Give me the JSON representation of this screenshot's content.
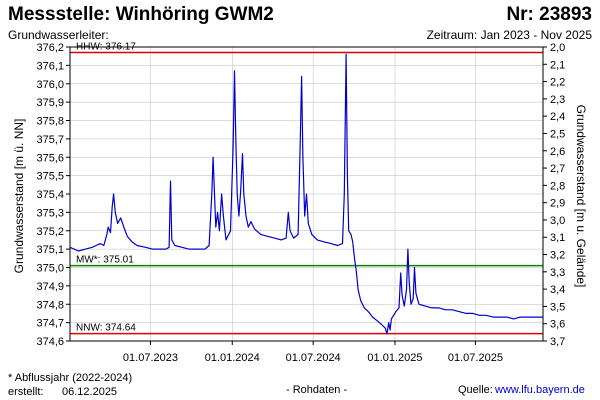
{
  "header": {
    "title_left": "Messstelle: Winhöring GWM2",
    "title_right": "Nr: 23893",
    "sub_left": "Grundwasserleiter:",
    "sub_right": "Zeitraum: Jan 2023 - Nov 2025"
  },
  "footer": {
    "note": "* Abflussjahr (2022-2024)",
    "created_label": "erstellt:",
    "created_date": "06.12.2025",
    "mid": "- Rohdaten -",
    "source_label": "Quelle:",
    "source_link": "www.lfu.bayern.de"
  },
  "colors": {
    "series": "#0000cc",
    "hhw": "#dd0000",
    "nnw": "#dd0000",
    "mw": "#008800",
    "grid": "#bbbbbb"
  },
  "chart_data": {
    "type": "line",
    "ylabel": "Grundwasserstand [m ü. NN]",
    "y2label": "Grundwasserstand [m u. Gelände]",
    "ylim": [
      374.6,
      376.2
    ],
    "y2lim": [
      2.0,
      3.7
    ],
    "yticks": [
      "376,2",
      "376,1",
      "376,0",
      "375,9",
      "375,8",
      "375,7",
      "375,6",
      "375,5",
      "375,4",
      "375,3",
      "375,2",
      "375,1",
      "375,0",
      "374,9",
      "374,8",
      "374,7",
      "374,6"
    ],
    "y2ticks": [
      "2,0",
      "2,1",
      "2,2",
      "2,3",
      "2,4",
      "2,5",
      "2,6",
      "2,7",
      "2,8",
      "2,9",
      "3,0",
      "3,1",
      "3,2",
      "3,3",
      "3,4",
      "3,5",
      "3,6",
      "3,7"
    ],
    "xlim": [
      "2023-01-01",
      "2025-11-30"
    ],
    "xticks": [
      {
        "date": "2023-07-01",
        "label": "01.07.2023"
      },
      {
        "date": "2024-01-01",
        "label": "01.01.2024"
      },
      {
        "date": "2024-07-01",
        "label": "01.07.2024"
      },
      {
        "date": "2025-01-01",
        "label": "01.01.2025"
      },
      {
        "date": "2025-07-01",
        "label": "01.07.2025"
      }
    ],
    "grid": true,
    "reference_lines": [
      {
        "label": "HHW: 376.17",
        "value": 376.17,
        "color": "#dd0000"
      },
      {
        "label": "MW*: 375.01",
        "value": 375.01,
        "color": "#008800"
      },
      {
        "label": "NNW: 374.64",
        "value": 374.64,
        "color": "#dd0000"
      }
    ],
    "series": [
      {
        "color": "#0000cc",
        "points": [
          [
            "2023-01-01",
            375.11
          ],
          [
            "2023-01-20",
            375.09
          ],
          [
            "2023-02-05",
            375.1
          ],
          [
            "2023-02-20",
            375.11
          ],
          [
            "2023-03-01",
            375.12
          ],
          [
            "2023-03-10",
            375.13
          ],
          [
            "2023-03-18",
            375.12
          ],
          [
            "2023-03-25",
            375.18
          ],
          [
            "2023-03-28",
            375.22
          ],
          [
            "2023-04-02",
            375.19
          ],
          [
            "2023-04-06",
            375.33
          ],
          [
            "2023-04-09",
            375.4
          ],
          [
            "2023-04-13",
            375.3
          ],
          [
            "2023-04-18",
            375.24
          ],
          [
            "2023-04-25",
            375.27
          ],
          [
            "2023-05-02",
            375.22
          ],
          [
            "2023-05-10",
            375.17
          ],
          [
            "2023-05-20",
            375.14
          ],
          [
            "2023-06-01",
            375.12
          ],
          [
            "2023-06-20",
            375.11
          ],
          [
            "2023-07-05",
            375.1
          ],
          [
            "2023-07-20",
            375.1
          ],
          [
            "2023-08-05",
            375.1
          ],
          [
            "2023-08-12",
            375.11
          ],
          [
            "2023-08-15",
            375.47
          ],
          [
            "2023-08-18",
            375.15
          ],
          [
            "2023-08-25",
            375.12
          ],
          [
            "2023-09-10",
            375.11
          ],
          [
            "2023-09-25",
            375.1
          ],
          [
            "2023-10-15",
            375.1
          ],
          [
            "2023-11-01",
            375.1
          ],
          [
            "2023-11-10",
            375.12
          ],
          [
            "2023-11-16",
            375.4
          ],
          [
            "2023-11-19",
            375.6
          ],
          [
            "2023-11-22",
            375.4
          ],
          [
            "2023-11-25",
            375.22
          ],
          [
            "2023-11-29",
            375.3
          ],
          [
            "2023-12-03",
            375.2
          ],
          [
            "2023-12-08",
            375.4
          ],
          [
            "2023-12-12",
            375.28
          ],
          [
            "2023-12-18",
            375.15
          ],
          [
            "2023-12-28",
            375.2
          ],
          [
            "2024-01-03",
            375.65
          ],
          [
            "2024-01-06",
            376.07
          ],
          [
            "2024-01-09",
            375.7
          ],
          [
            "2024-01-12",
            375.4
          ],
          [
            "2024-01-16",
            375.28
          ],
          [
            "2024-01-20",
            375.42
          ],
          [
            "2024-01-24",
            375.62
          ],
          [
            "2024-01-27",
            375.4
          ],
          [
            "2024-02-01",
            375.28
          ],
          [
            "2024-02-06",
            375.22
          ],
          [
            "2024-02-12",
            375.25
          ],
          [
            "2024-02-20",
            375.21
          ],
          [
            "2024-03-05",
            375.18
          ],
          [
            "2024-03-20",
            375.17
          ],
          [
            "2024-04-05",
            375.16
          ],
          [
            "2024-04-20",
            375.15
          ],
          [
            "2024-05-01",
            375.16
          ],
          [
            "2024-05-06",
            375.3
          ],
          [
            "2024-05-10",
            375.2
          ],
          [
            "2024-05-18",
            375.16
          ],
          [
            "2024-05-28",
            375.18
          ],
          [
            "2024-06-02",
            375.7
          ],
          [
            "2024-06-05",
            376.04
          ],
          [
            "2024-06-08",
            375.6
          ],
          [
            "2024-06-12",
            375.28
          ],
          [
            "2024-06-16",
            375.4
          ],
          [
            "2024-06-20",
            375.24
          ],
          [
            "2024-06-28",
            375.18
          ],
          [
            "2024-07-10",
            375.15
          ],
          [
            "2024-07-25",
            375.14
          ],
          [
            "2024-08-10",
            375.13
          ],
          [
            "2024-08-25",
            375.12
          ],
          [
            "2024-09-05",
            375.13
          ],
          [
            "2024-09-09",
            375.4
          ],
          [
            "2024-09-13",
            376.16
          ],
          [
            "2024-09-16",
            375.5
          ],
          [
            "2024-09-19",
            375.2
          ],
          [
            "2024-09-24",
            375.18
          ],
          [
            "2024-09-28",
            375.14
          ],
          [
            "2024-10-02",
            375.05
          ],
          [
            "2024-10-06",
            374.98
          ],
          [
            "2024-10-10",
            374.88
          ],
          [
            "2024-10-16",
            374.82
          ],
          [
            "2024-10-24",
            374.78
          ],
          [
            "2024-11-02",
            374.76
          ],
          [
            "2024-11-12",
            374.73
          ],
          [
            "2024-11-22",
            374.71
          ],
          [
            "2024-12-02",
            374.69
          ],
          [
            "2024-12-10",
            374.67
          ],
          [
            "2024-12-14",
            374.64
          ],
          [
            "2024-12-18",
            374.7
          ],
          [
            "2024-12-21",
            374.66
          ],
          [
            "2024-12-24",
            374.72
          ],
          [
            "2025-01-03",
            374.76
          ],
          [
            "2025-01-10",
            374.78
          ],
          [
            "2025-01-14",
            374.97
          ],
          [
            "2025-01-17",
            374.85
          ],
          [
            "2025-01-22",
            374.79
          ],
          [
            "2025-01-27",
            374.88
          ],
          [
            "2025-01-30",
            375.1
          ],
          [
            "2025-02-02",
            374.92
          ],
          [
            "2025-02-06",
            374.8
          ],
          [
            "2025-02-11",
            374.83
          ],
          [
            "2025-02-14",
            375.0
          ],
          [
            "2025-02-17",
            374.86
          ],
          [
            "2025-02-24",
            374.8
          ],
          [
            "2025-03-10",
            374.79
          ],
          [
            "2025-03-25",
            374.78
          ],
          [
            "2025-04-10",
            374.78
          ],
          [
            "2025-04-25",
            374.77
          ],
          [
            "2025-05-10",
            374.77
          ],
          [
            "2025-05-25",
            374.76
          ],
          [
            "2025-06-10",
            374.75
          ],
          [
            "2025-06-25",
            374.75
          ],
          [
            "2025-07-10",
            374.74
          ],
          [
            "2025-07-25",
            374.74
          ],
          [
            "2025-08-10",
            374.73
          ],
          [
            "2025-08-25",
            374.73
          ],
          [
            "2025-09-10",
            374.73
          ],
          [
            "2025-09-25",
            374.72
          ],
          [
            "2025-10-10",
            374.73
          ],
          [
            "2025-10-25",
            374.73
          ],
          [
            "2025-11-10",
            374.73
          ],
          [
            "2025-11-30",
            374.73
          ]
        ]
      }
    ]
  }
}
